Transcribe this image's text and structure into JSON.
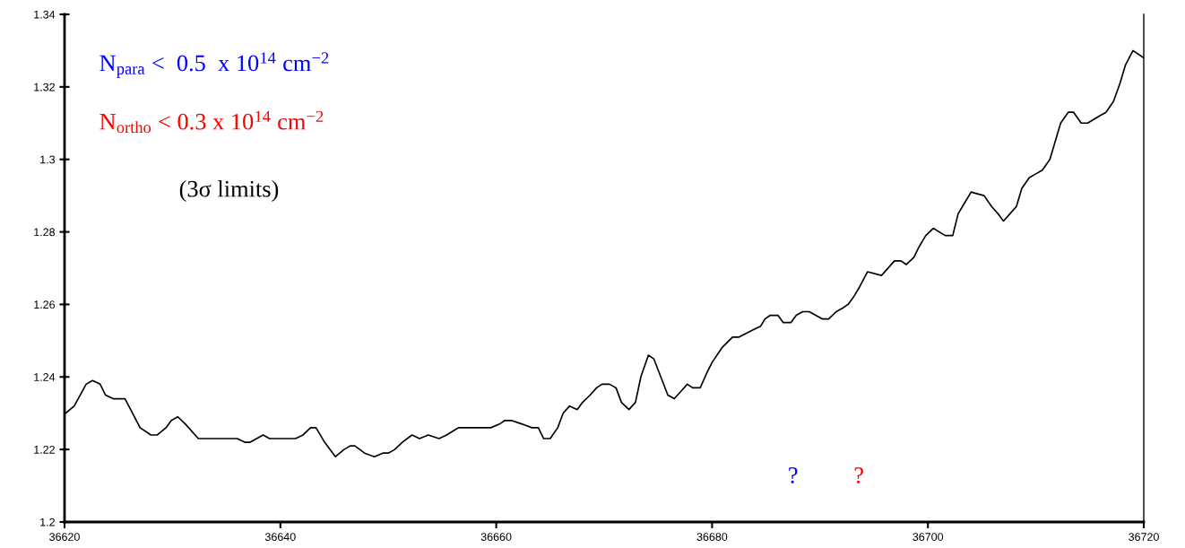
{
  "chart_data": {
    "type": "line",
    "x": [
      36620.1,
      36620.9,
      36622.0,
      36622.6,
      36623.3,
      36623.8,
      36624.5,
      36625.6,
      36626.3,
      36627.0,
      36628.0,
      36628.6,
      36629.4,
      36629.9,
      36630.5,
      36631.2,
      36632.4,
      36633.0,
      36633.5,
      36634.2,
      36634.8,
      36635.6,
      36636.0,
      36636.7,
      36637.2,
      36638.4,
      36639.0,
      36640.3,
      36640.9,
      36641.4,
      36642.1,
      36642.8,
      36643.3,
      36644.1,
      36645.1,
      36645.9,
      36646.5,
      36646.9,
      36647.8,
      36648.7,
      36649.5,
      36650.0,
      36650.6,
      36651.3,
      36652.2,
      36652.9,
      36653.7,
      36654.7,
      36655.4,
      36656.5,
      36657.2,
      36657.8,
      36658.5,
      36659.5,
      36660.3,
      36660.8,
      36661.4,
      36662.4,
      36663.3,
      36663.9,
      36664.4,
      36665.0,
      36665.7,
      36666.2,
      36666.8,
      36667.5,
      36668.0,
      36668.7,
      36669.3,
      36669.8,
      36670.5,
      36671.1,
      36671.6,
      36672.3,
      36672.9,
      36673.4,
      36674.1,
      36674.6,
      36675.9,
      36676.5,
      36677.1,
      36677.7,
      36678.2,
      36678.9,
      36679.5,
      36680.0,
      36680.9,
      36681.9,
      36682.5,
      36683.8,
      36684.5,
      36684.9,
      36685.4,
      36686.1,
      36686.6,
      36687.3,
      36687.8,
      36688.4,
      36689.0,
      36689.6,
      36690.2,
      36690.8,
      36691.5,
      36692.1,
      36692.6,
      36693.1,
      36693.7,
      36694.4,
      36695.7,
      36696.9,
      36697.5,
      36698.0,
      36698.7,
      36699.2,
      36699.8,
      36700.5,
      36701.6,
      36702.3,
      36702.8,
      36703.4,
      36704.0,
      36705.2,
      36705.9,
      36706.5,
      36707.0,
      36707.6,
      36708.2,
      36708.7,
      36709.4,
      36710.0,
      36710.6,
      36711.3,
      36711.8,
      36712.3,
      36713.0,
      36713.5,
      36714.2,
      36714.8,
      36715.9,
      36716.5,
      36717.2,
      36717.8,
      36718.3,
      36719.0,
      36720.0
    ],
    "series": [
      {
        "color": "#000000",
        "values": [
          1.23,
          1.232,
          1.238,
          1.239,
          1.238,
          1.235,
          1.234,
          1.234,
          1.23,
          1.226,
          1.224,
          1.224,
          1.226,
          1.228,
          1.229,
          1.227,
          1.223,
          1.223,
          1.223,
          1.223,
          1.223,
          1.223,
          1.223,
          1.222,
          1.222,
          1.224,
          1.223,
          1.223,
          1.223,
          1.223,
          1.224,
          1.226,
          1.226,
          1.222,
          1.218,
          1.22,
          1.221,
          1.221,
          1.219,
          1.218,
          1.219,
          1.219,
          1.22,
          1.222,
          1.224,
          1.223,
          1.224,
          1.223,
          1.224,
          1.226,
          1.226,
          1.226,
          1.226,
          1.226,
          1.227,
          1.228,
          1.228,
          1.227,
          1.226,
          1.226,
          1.223,
          1.223,
          1.226,
          1.23,
          1.232,
          1.231,
          1.233,
          1.235,
          1.237,
          1.238,
          1.238,
          1.237,
          1.233,
          1.231,
          1.233,
          1.24,
          1.246,
          1.245,
          1.235,
          1.234,
          1.236,
          1.238,
          1.237,
          1.237,
          1.241,
          1.244,
          1.248,
          1.251,
          1.251,
          1.253,
          1.254,
          1.256,
          1.257,
          1.257,
          1.255,
          1.255,
          1.257,
          1.258,
          1.258,
          1.257,
          1.256,
          1.256,
          1.258,
          1.259,
          1.26,
          1.262,
          1.265,
          1.269,
          1.268,
          1.272,
          1.272,
          1.271,
          1.273,
          1.276,
          1.279,
          1.281,
          1.279,
          1.279,
          1.285,
          1.288,
          1.291,
          1.29,
          1.287,
          1.285,
          1.283,
          1.285,
          1.287,
          1.292,
          1.295,
          1.296,
          1.297,
          1.3,
          1.305,
          1.31,
          1.313,
          1.313,
          1.31,
          1.31,
          1.312,
          1.313,
          1.316,
          1.321,
          1.326,
          1.33,
          1.328
        ]
      }
    ],
    "xlim": [
      36620,
      36720
    ],
    "xticks": [
      36620,
      36640,
      36660,
      36680,
      36700,
      36720
    ],
    "ylim": [
      1.2,
      1.34
    ],
    "yticks": [
      1.2,
      1.22,
      1.24,
      1.26,
      1.28,
      1.3,
      1.32,
      1.34
    ],
    "grid": false,
    "legend": false,
    "marker": "none",
    "line_style": "solid",
    "annotations": [
      "N$_{para}$ <  0.5  x 10$^{14}$ cm$^{−2}$",
      "N$_{ortho}$ < 0.3 x 10$^{14}$ cm$^{−2}$",
      "(3σ limits)",
      "?",
      "?"
    ]
  }
}
